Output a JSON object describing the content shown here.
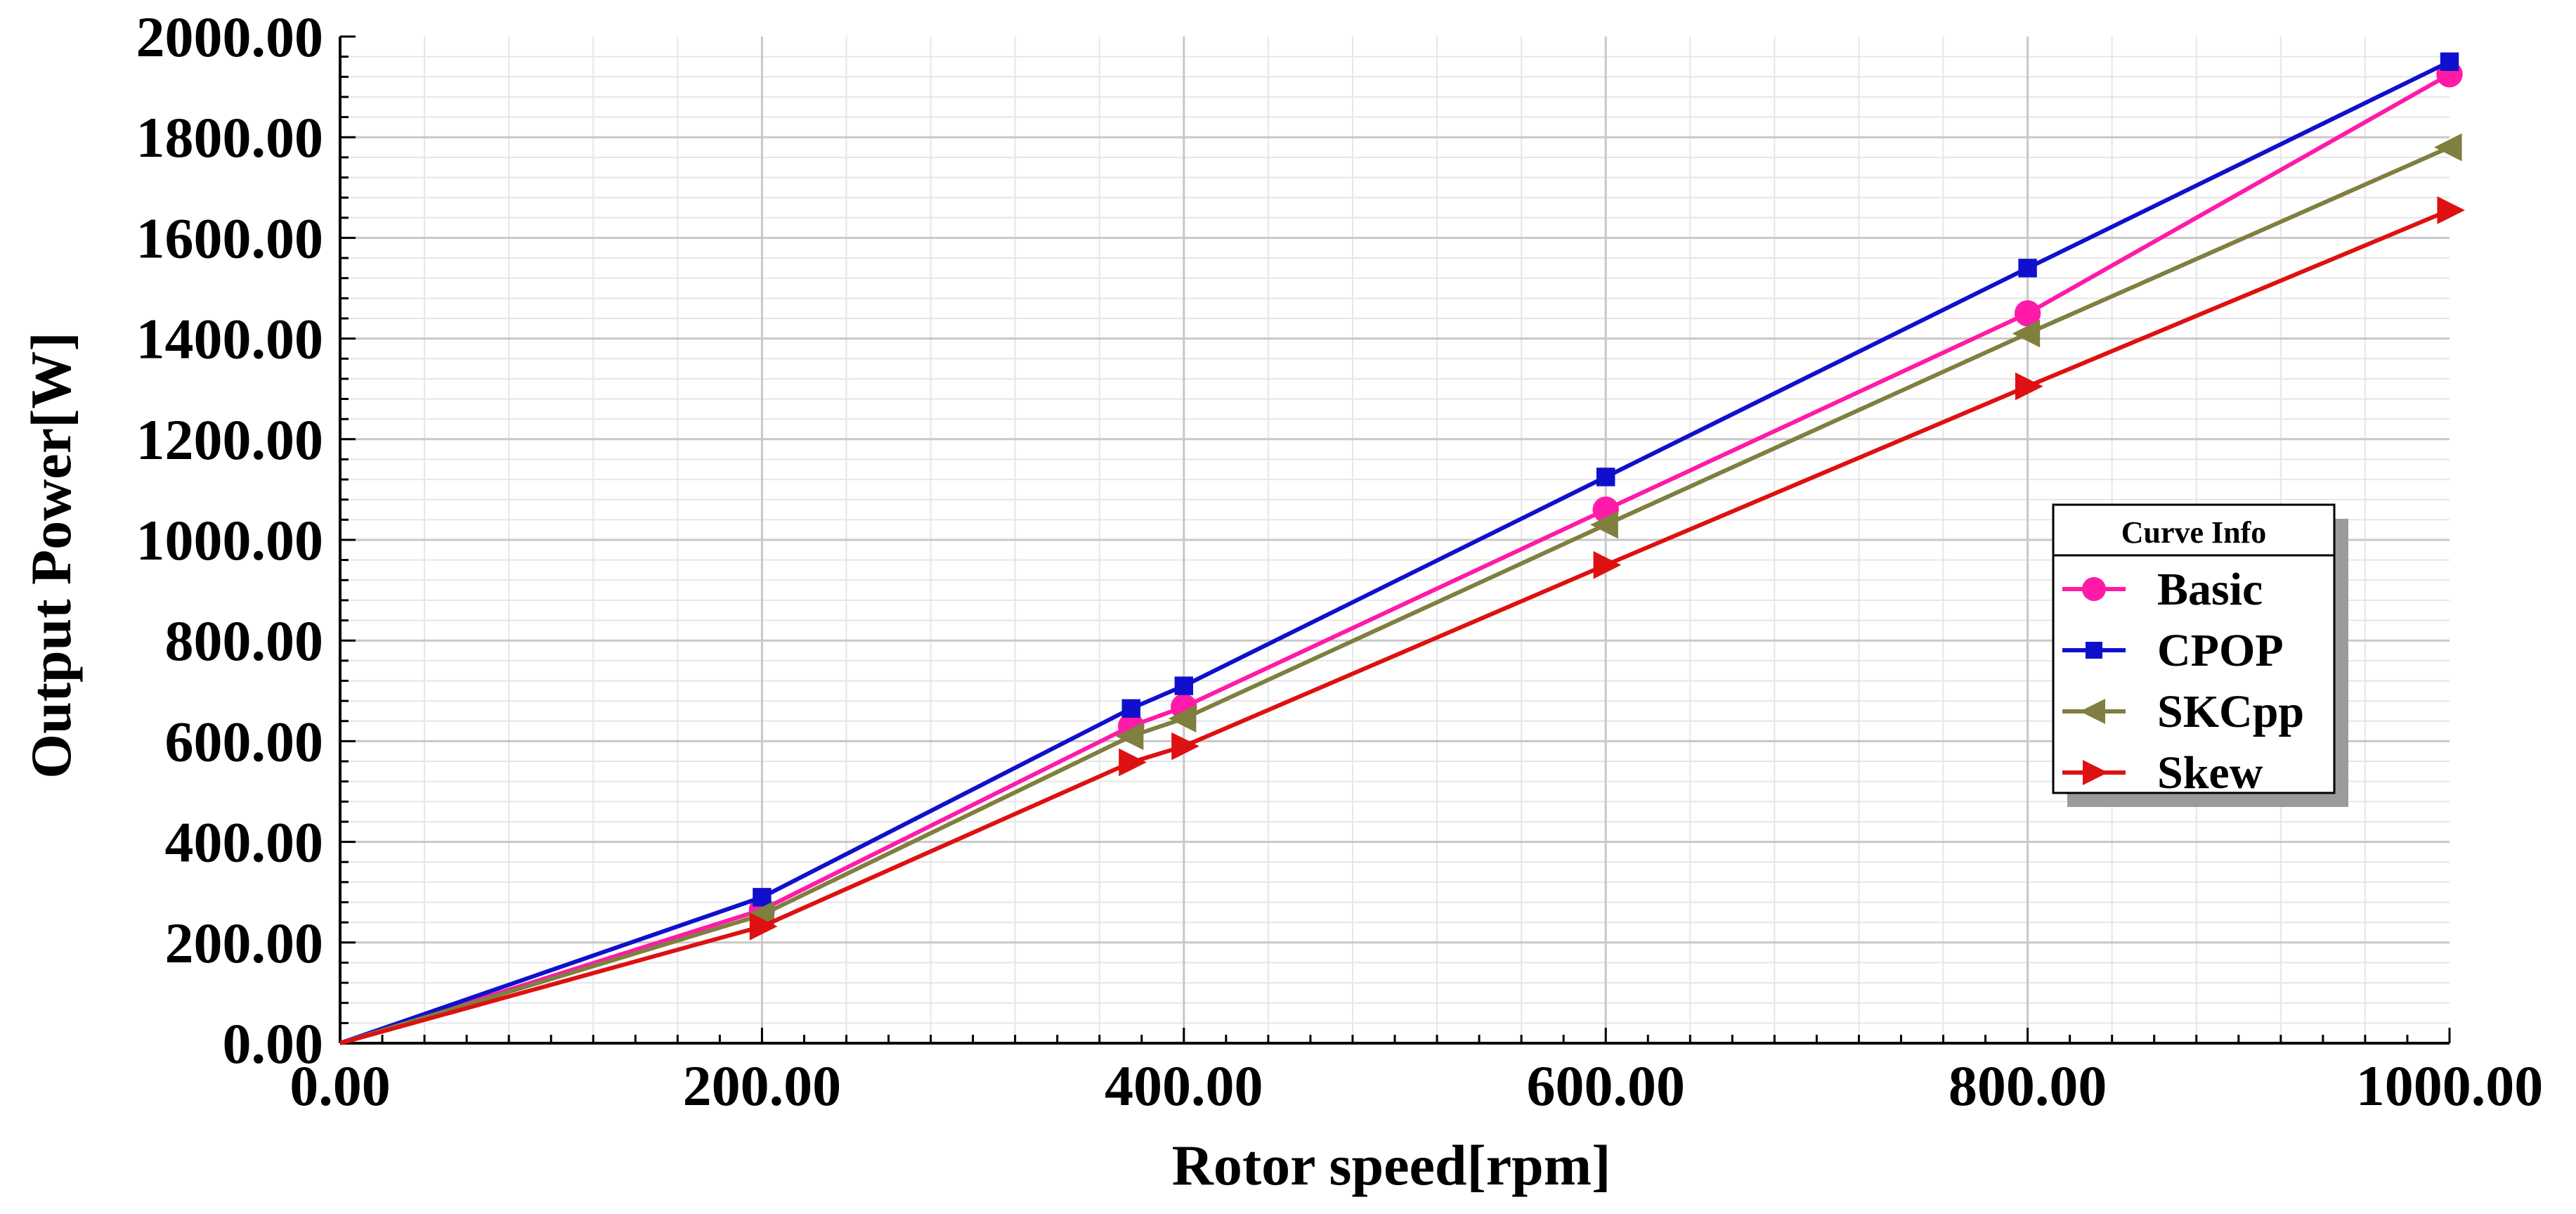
{
  "chart_data": {
    "type": "line",
    "xlabel": "Rotor speed[rpm]",
    "ylabel": "Output Power[W]",
    "xlim": [
      0,
      1000
    ],
    "ylim": [
      0,
      2000
    ],
    "x_ticks": [
      "0.00",
      "200.00",
      "400.00",
      "600.00",
      "800.00",
      "1000.00"
    ],
    "y_ticks": [
      "0.00",
      "200.00",
      "400.00",
      "600.00",
      "800.00",
      "1000.00",
      "1200.00",
      "1400.00",
      "1600.00",
      "1800.00",
      "2000.00"
    ],
    "grid": true,
    "legend": {
      "title": "Curve Info",
      "placement": "right"
    },
    "series": [
      {
        "name": "Basic",
        "color": "#ff1aa8",
        "marker": "circle",
        "points": [
          [
            0,
            0
          ],
          [
            200,
            265
          ],
          [
            375,
            630
          ],
          [
            400,
            668
          ],
          [
            600,
            1060
          ],
          [
            800,
            1450
          ],
          [
            1000,
            1925
          ]
        ]
      },
      {
        "name": "CPOP",
        "color": "#1010cc",
        "marker": "square",
        "points": [
          [
            0,
            0
          ],
          [
            200,
            290
          ],
          [
            375,
            665
          ],
          [
            400,
            710
          ],
          [
            600,
            1125
          ],
          [
            800,
            1540
          ],
          [
            1000,
            1950
          ]
        ]
      },
      {
        "name": "SKCpp",
        "color": "#7f7f3f",
        "marker": "triangle-left",
        "points": [
          [
            0,
            0
          ],
          [
            200,
            255
          ],
          [
            375,
            610
          ],
          [
            400,
            645
          ],
          [
            600,
            1030
          ],
          [
            800,
            1410
          ],
          [
            1000,
            1780
          ]
        ]
      },
      {
        "name": "Skew",
        "color": "#dd1111",
        "marker": "triangle-right",
        "points": [
          [
            0,
            0
          ],
          [
            200,
            232
          ],
          [
            375,
            558
          ],
          [
            400,
            590
          ],
          [
            600,
            950
          ],
          [
            800,
            1305
          ],
          [
            1000,
            1655
          ]
        ]
      }
    ]
  }
}
